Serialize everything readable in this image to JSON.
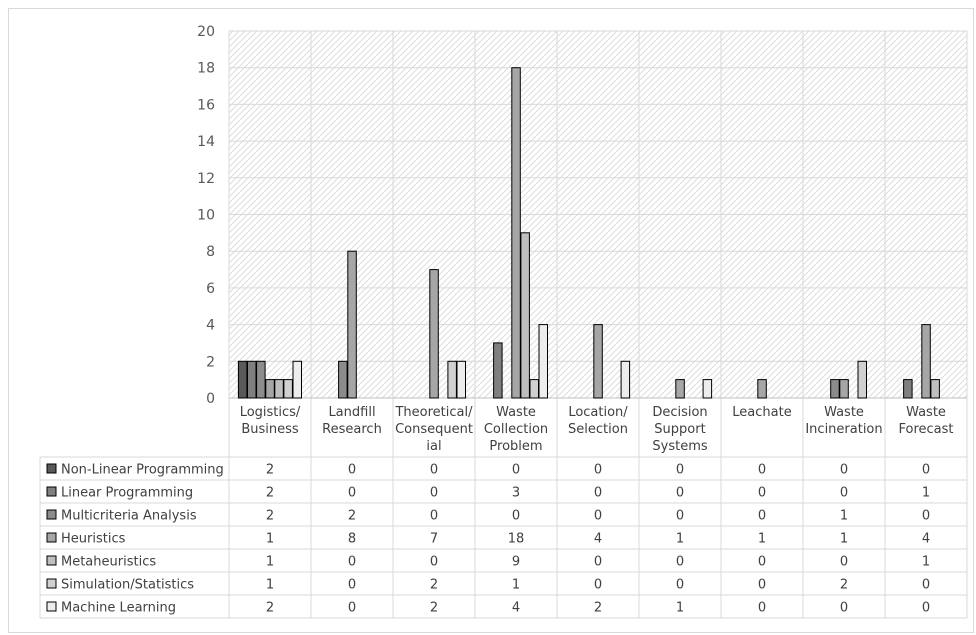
{
  "chart_data": {
    "type": "bar",
    "title": "",
    "xlabel": "",
    "ylabel": "",
    "ylim": [
      0,
      20
    ],
    "yticks": [
      0,
      2,
      4,
      6,
      8,
      10,
      12,
      14,
      16,
      18,
      20
    ],
    "grid": true,
    "legend_placement": "data table (left)",
    "categories": [
      [
        "Logistics/",
        "Business"
      ],
      [
        "Landfill",
        "Research"
      ],
      [
        "Theoretical/",
        "Consequent",
        "ial"
      ],
      [
        "Waste",
        "Collection",
        "Problem"
      ],
      [
        "Location/",
        "Selection"
      ],
      [
        "Decision",
        "Support",
        "Systems"
      ],
      [
        "Leachate"
      ],
      [
        "Waste",
        "Incineration"
      ],
      [
        "Waste",
        "Forecast"
      ]
    ],
    "series": [
      {
        "name": "Non-Linear Programming",
        "color": "#595959",
        "values": [
          2,
          0,
          0,
          0,
          0,
          0,
          0,
          0,
          0
        ]
      },
      {
        "name": "Linear Programming",
        "color": "#7f7f7f",
        "values": [
          2,
          0,
          0,
          3,
          0,
          0,
          0,
          0,
          1
        ]
      },
      {
        "name": "Multicriteria Analysis",
        "color": "#8c8c8c",
        "values": [
          2,
          2,
          0,
          0,
          0,
          0,
          0,
          1,
          0
        ]
      },
      {
        "name": "Heuristics",
        "color": "#a6a6a6",
        "values": [
          1,
          8,
          7,
          18,
          4,
          1,
          1,
          1,
          4
        ]
      },
      {
        "name": "Metaheuristics",
        "color": "#bfbfbf",
        "values": [
          1,
          0,
          0,
          9,
          0,
          0,
          0,
          0,
          1
        ]
      },
      {
        "name": "Simulation/Statistics",
        "color": "#d0d0d0",
        "values": [
          1,
          0,
          2,
          1,
          0,
          0,
          0,
          2,
          0
        ]
      },
      {
        "name": "Machine Learning",
        "color": "#ededed",
        "values": [
          2,
          0,
          2,
          4,
          2,
          1,
          0,
          0,
          0
        ]
      }
    ]
  }
}
